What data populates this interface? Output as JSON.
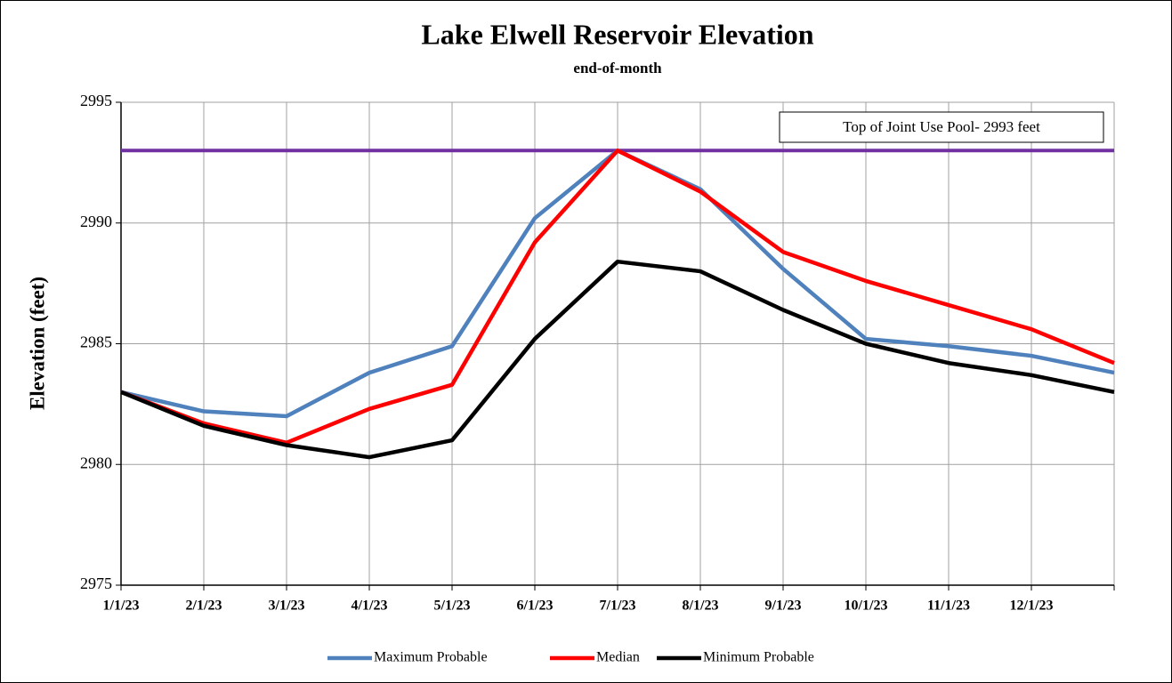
{
  "chart_data": {
    "type": "line",
    "title": "Lake Elwell Reservoir Elevation",
    "subtitle": "end-of-month",
    "y_label": "Elevation (feet)",
    "categories": [
      "1/1/23",
      "2/1/23",
      "3/1/23",
      "4/1/23",
      "5/1/23",
      "6/1/23",
      "7/1/23",
      "8/1/23",
      "9/1/23",
      "10/1/23",
      "11/1/23",
      "12/1/23",
      null
    ],
    "series": [
      {
        "name": "Maximum Probable",
        "color": "#4f81bd",
        "values": [
          2983.0,
          2982.2,
          2982.0,
          2983.8,
          2984.9,
          2990.2,
          2993.0,
          2991.4,
          2988.1,
          2985.2,
          2984.9,
          2984.5,
          2983.8
        ]
      },
      {
        "name": "Median",
        "color": "#ff0000",
        "values": [
          2983.0,
          2981.7,
          2980.9,
          2982.3,
          2983.3,
          2989.2,
          2993.0,
          2991.3,
          2988.8,
          2987.6,
          2986.6,
          2985.6,
          2984.2
        ]
      },
      {
        "name": "Minimum Probable",
        "color": "#000000",
        "values": [
          2983.0,
          2981.6,
          2980.8,
          2980.3,
          2981.0,
          2985.2,
          2988.4,
          2988.0,
          2986.4,
          2985.0,
          2984.2,
          2983.7,
          2983.0
        ]
      }
    ],
    "reference": {
      "value": 2993,
      "label": "Top of Joint Use Pool- 2993 feet",
      "color": "#7030a0"
    },
    "ylim": [
      2975,
      2995
    ],
    "yticks": [
      2975,
      2980,
      2985,
      2990,
      2995
    ],
    "grid": true,
    "legend": "bottom"
  }
}
